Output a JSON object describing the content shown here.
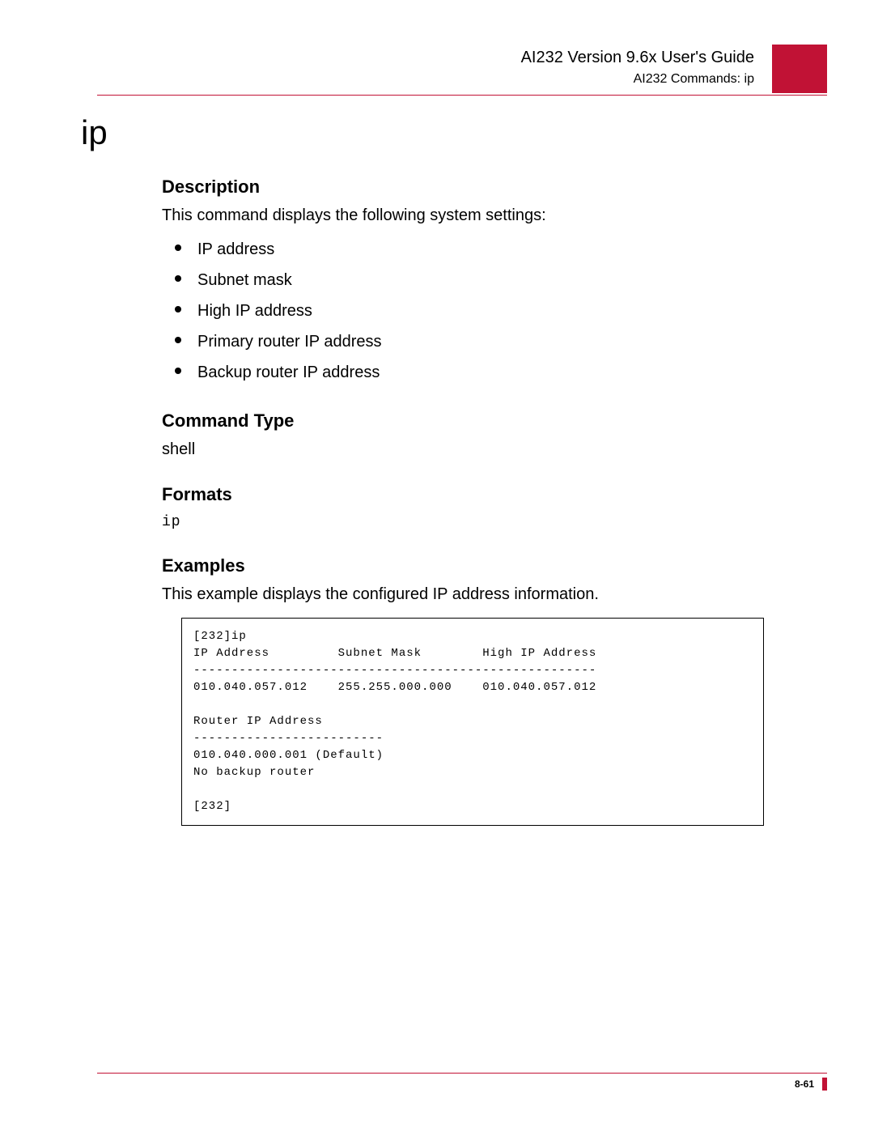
{
  "colors": {
    "accent": "#c11235",
    "text": "#000000",
    "background": "#ffffff"
  },
  "header": {
    "title": "AI232 Version 9.6x User's Guide",
    "subtitle": "AI232 Commands: ip"
  },
  "command_title": "ip",
  "sections": {
    "description": {
      "heading": "Description",
      "intro": "This command displays the following system settings:",
      "items": [
        "IP address",
        "Subnet mask",
        "High IP address",
        "Primary router IP address",
        "Backup router IP address"
      ]
    },
    "command_type": {
      "heading": "Command Type",
      "value": "shell"
    },
    "formats": {
      "heading": "Formats",
      "value": "ip"
    },
    "examples": {
      "heading": "Examples",
      "intro": "This example displays the configured IP address information.",
      "block": "[232]ip\nIP Address         Subnet Mask        High IP Address\n-----------------------------------------------------\n010.040.057.012    255.255.000.000    010.040.057.012\n\nRouter IP Address\n-------------------------\n010.040.000.001 (Default)\nNo backup router\n\n[232]"
    }
  },
  "footer": {
    "page_number": "8-61"
  }
}
